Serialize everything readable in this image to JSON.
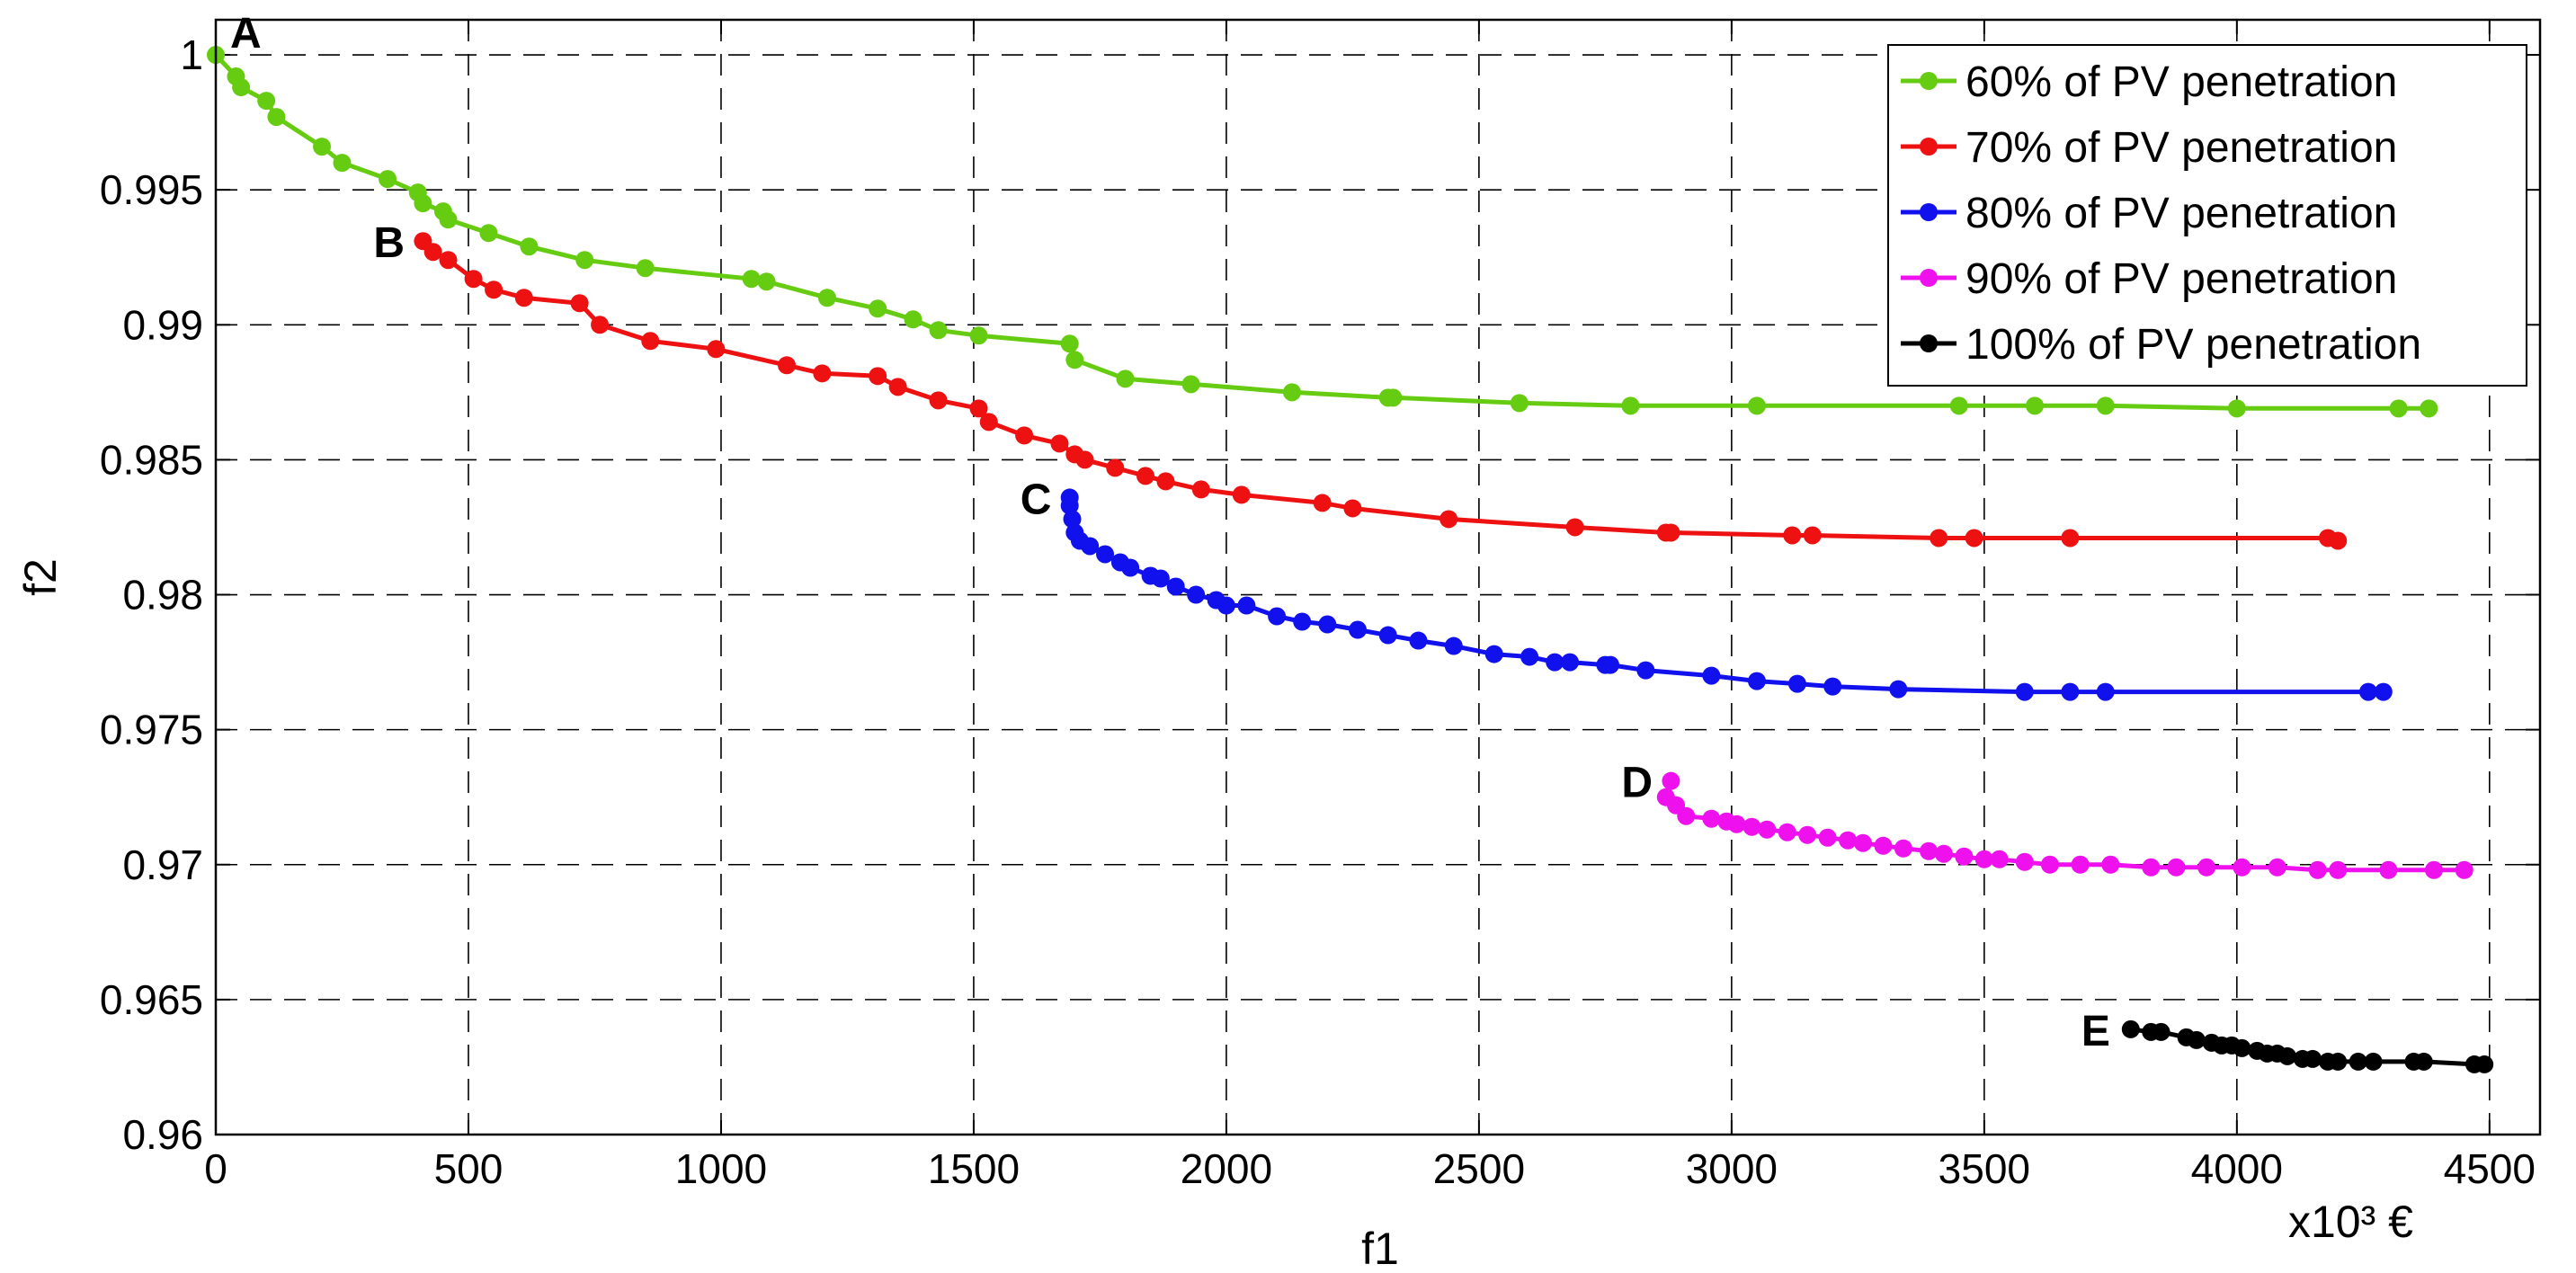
{
  "chart_data": {
    "type": "line",
    "xlabel": "f1",
    "ylabel": "f2",
    "x_unit": "x10³ €",
    "xlim": [
      0,
      4600
    ],
    "ylim": [
      0.96,
      1.0013
    ],
    "xticks": [
      0,
      500,
      1000,
      1500,
      2000,
      2500,
      3000,
      3500,
      4000,
      4500
    ],
    "yticks": [
      0.96,
      0.965,
      0.97,
      0.975,
      0.98,
      0.985,
      0.99,
      0.995,
      1.0
    ],
    "xtick_labels": [
      "0",
      "500",
      "1000",
      "1500",
      "2000",
      "2500",
      "3000",
      "3500",
      "4000",
      "4500"
    ],
    "ytick_labels": [
      "0.96",
      "0.965",
      "0.97",
      "0.975",
      "0.98",
      "0.985",
      "0.99",
      "0.995",
      "1"
    ],
    "grid": true,
    "legend_position": "top-right",
    "series": [
      {
        "name": "60% of PV penetration",
        "color": "#66cc11",
        "label": "A",
        "x": [
          0,
          40,
          50,
          100,
          120,
          210,
          250,
          340,
          400,
          410,
          450,
          460,
          540,
          620,
          730,
          850,
          1060,
          1090,
          1210,
          1310,
          1380,
          1430,
          1510,
          1690,
          1700,
          1800,
          1930,
          2130,
          2320,
          2330,
          2580,
          2800,
          3050,
          3450,
          3600,
          3740,
          4000,
          4320,
          4380
        ],
        "y": [
          1.0,
          0.9992,
          0.9988,
          0.9983,
          0.9977,
          0.9966,
          0.996,
          0.9954,
          0.9949,
          0.9945,
          0.9942,
          0.9939,
          0.9934,
          0.9929,
          0.9924,
          0.9921,
          0.9917,
          0.9916,
          0.991,
          0.9906,
          0.9902,
          0.9898,
          0.9896,
          0.9893,
          0.9887,
          0.988,
          0.9878,
          0.9875,
          0.9873,
          0.9873,
          0.9871,
          0.987,
          0.987,
          0.987,
          0.987,
          0.987,
          0.9869,
          0.9869,
          0.9869
        ]
      },
      {
        "name": "70% of PV penetration",
        "color": "#ee1111",
        "label": "B",
        "x": [
          410,
          430,
          460,
          510,
          550,
          610,
          720,
          760,
          860,
          990,
          1130,
          1200,
          1310,
          1350,
          1430,
          1510,
          1530,
          1600,
          1670,
          1700,
          1720,
          1780,
          1840,
          1880,
          1950,
          2030,
          2190,
          2250,
          2440,
          2690,
          2870,
          2880,
          3120,
          3160,
          3410,
          3480,
          3670,
          4180,
          4200
        ],
        "y": [
          0.9931,
          0.9927,
          0.9924,
          0.9917,
          0.9913,
          0.991,
          0.9908,
          0.99,
          0.9894,
          0.9891,
          0.9885,
          0.9882,
          0.9881,
          0.9877,
          0.9872,
          0.9869,
          0.9864,
          0.9859,
          0.9856,
          0.9852,
          0.985,
          0.9847,
          0.9844,
          0.9842,
          0.9839,
          0.9837,
          0.9834,
          0.9832,
          0.9828,
          0.9825,
          0.9823,
          0.9823,
          0.9822,
          0.9822,
          0.9821,
          0.9821,
          0.9821,
          0.9821,
          0.982
        ]
      },
      {
        "name": "80% of PV penetration",
        "color": "#1111ee",
        "label": "C",
        "x": [
          1690,
          1690,
          1695,
          1700,
          1710,
          1730,
          1760,
          1790,
          1810,
          1850,
          1870,
          1900,
          1940,
          1980,
          2000,
          2040,
          2100,
          2150,
          2200,
          2260,
          2320,
          2380,
          2450,
          2530,
          2600,
          2650,
          2680,
          2750,
          2760,
          2830,
          2960,
          3050,
          3130,
          3200,
          3330,
          3580,
          3670,
          3740,
          4260,
          4290
        ],
        "y": [
          0.9836,
          0.9833,
          0.9828,
          0.9823,
          0.982,
          0.9818,
          0.9815,
          0.9812,
          0.981,
          0.9807,
          0.9806,
          0.9803,
          0.98,
          0.9798,
          0.9796,
          0.9796,
          0.9792,
          0.979,
          0.9789,
          0.9787,
          0.9785,
          0.9783,
          0.9781,
          0.9778,
          0.9777,
          0.9775,
          0.9775,
          0.9774,
          0.9774,
          0.9772,
          0.977,
          0.9768,
          0.9767,
          0.9766,
          0.9765,
          0.9764,
          0.9764,
          0.9764,
          0.9764,
          0.9764
        ]
      },
      {
        "name": "90% of PV penetration",
        "color": "#ee11ee",
        "label": "D",
        "x": [
          2880,
          2870,
          2890,
          2910,
          2960,
          2990,
          3010,
          3040,
          3070,
          3110,
          3150,
          3190,
          3230,
          3260,
          3300,
          3340,
          3390,
          3420,
          3460,
          3500,
          3530,
          3580,
          3630,
          3690,
          3750,
          3830,
          3880,
          3940,
          4010,
          4080,
          4160,
          4200,
          4300,
          4390,
          4450
        ],
        "y": [
          0.9731,
          0.9725,
          0.9722,
          0.9718,
          0.9717,
          0.9716,
          0.9715,
          0.9714,
          0.9713,
          0.9712,
          0.9711,
          0.971,
          0.9709,
          0.9708,
          0.9707,
          0.9706,
          0.9705,
          0.9704,
          0.9703,
          0.9702,
          0.9702,
          0.9701,
          0.97,
          0.97,
          0.97,
          0.9699,
          0.9699,
          0.9699,
          0.9699,
          0.9699,
          0.9698,
          0.9698,
          0.9698,
          0.9698,
          0.9698
        ]
      },
      {
        "name": "100% of PV penetration",
        "color": "#000000",
        "label": "E",
        "x": [
          3790,
          3830,
          3850,
          3900,
          3920,
          3950,
          3970,
          3990,
          4010,
          4040,
          4060,
          4080,
          4100,
          4130,
          4150,
          4180,
          4200,
          4240,
          4270,
          4350,
          4370,
          4470,
          4490
        ],
        "y": [
          0.9639,
          0.9638,
          0.9638,
          0.9636,
          0.9635,
          0.9634,
          0.9633,
          0.9633,
          0.9632,
          0.9631,
          0.963,
          0.963,
          0.9629,
          0.9628,
          0.9628,
          0.9627,
          0.9627,
          0.9627,
          0.9627,
          0.9627,
          0.9627,
          0.9626,
          0.9626
        ]
      }
    ]
  }
}
